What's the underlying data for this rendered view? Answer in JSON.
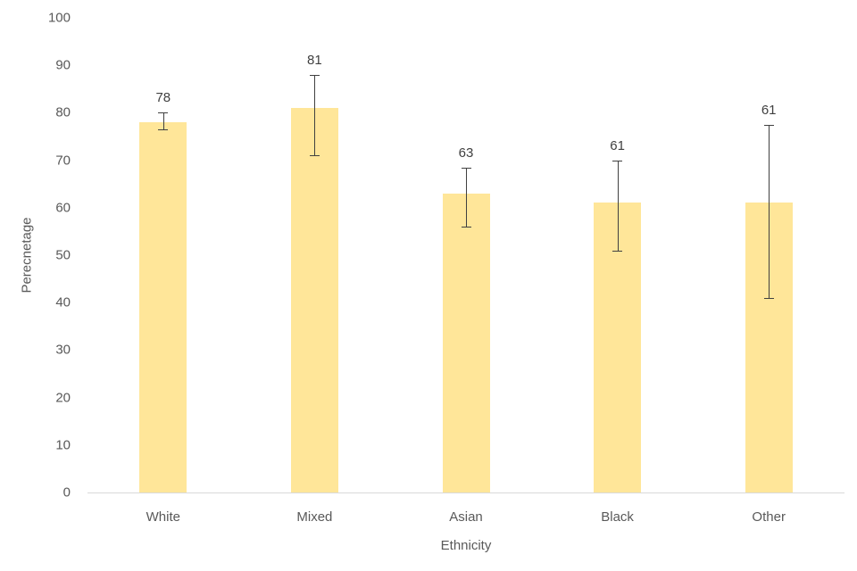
{
  "chart_data": {
    "type": "bar",
    "title": "",
    "xlabel": "Ethnicity",
    "ylabel": "Perecnetage",
    "categories": [
      "White",
      "Mixed",
      "Asian",
      "Black",
      "Other"
    ],
    "values": [
      78,
      81,
      63,
      61,
      61
    ],
    "data_labels": [
      "78",
      "81",
      "63",
      "61",
      "61"
    ],
    "error_bars": [
      {
        "upper": 80,
        "lower": 76.5
      },
      {
        "upper": 88,
        "lower": 71
      },
      {
        "upper": 68.5,
        "lower": 56
      },
      {
        "upper": 70,
        "lower": 51
      },
      {
        "upper": 77.5,
        "lower": 41
      }
    ],
    "ylim": [
      0,
      100
    ],
    "yticks": [
      0,
      10,
      20,
      30,
      40,
      50,
      60,
      70,
      80,
      90,
      100
    ],
    "grid": false,
    "legend": "none",
    "colors": {
      "bar_fill": "#FFE699",
      "error_bar": "#404040",
      "axis_line": "#D9D9D9",
      "tick_text": "#595959",
      "data_label_text": "#404040"
    }
  }
}
